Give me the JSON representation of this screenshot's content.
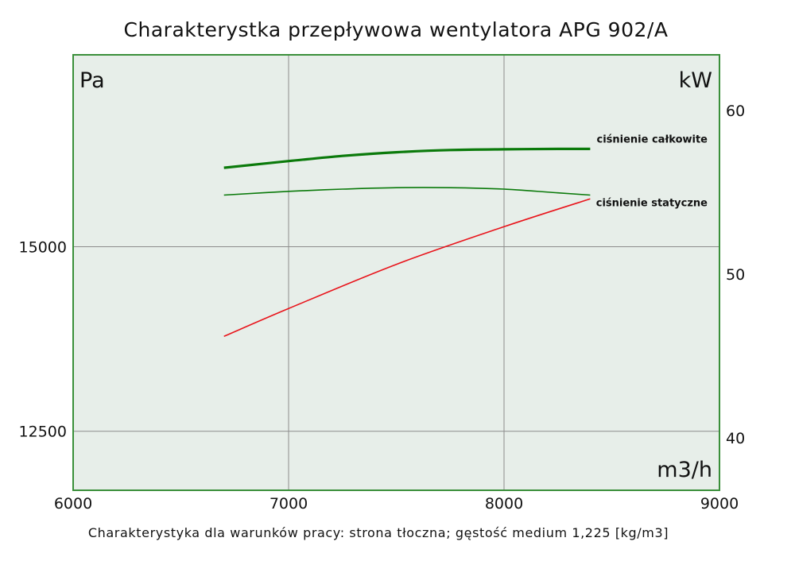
{
  "title": "Charakterystka przepływowa wentylatora APG 902/A",
  "footer": "Charakterystyka dla warunków pracy: strona tłoczna; gęstość medium 1,225 [kg/m3]",
  "colors": {
    "plot_background": "#e7eee9",
    "frame": "#3a8f3a",
    "grid": "#8c8c8c",
    "pressure_series": "#0b7a0b",
    "power_series": "#e8141b"
  },
  "chart_data": {
    "type": "line",
    "title": "Charakterystka przepływowa wentylatora APG 902/A",
    "xlabel": "m3/h",
    "ylabel_left": "Pa",
    "ylabel_right": "kW",
    "xlim": [
      6000,
      9000
    ],
    "ylim_left": [
      11700,
      17600
    ],
    "ylim_right": [
      36.8,
      63.4
    ],
    "x_ticks": [
      "6000",
      "7000",
      "8000",
      "9000"
    ],
    "y_left_ticks": [
      "12500",
      "15000"
    ],
    "y_right_ticks": [
      "40",
      "50",
      "60"
    ],
    "x_tick_values": [
      6000,
      7000,
      8000,
      9000
    ],
    "y_left_tick_values": [
      12500,
      15000
    ],
    "y_right_tick_values": [
      40,
      50,
      60
    ],
    "grid": true,
    "series": [
      {
        "name": "ciśnienie całkowite",
        "axis": "left",
        "color": "#0b7a0b",
        "bold": true,
        "x": [
          6700,
          7000,
          7250,
          7500,
          7750,
          8000,
          8250,
          8400
        ],
        "y": [
          16070,
          16160,
          16230,
          16280,
          16310,
          16320,
          16325,
          16325
        ]
      },
      {
        "name": "ciśnienie statyczne",
        "axis": "left",
        "color": "#0b7a0b",
        "bold": false,
        "x": [
          6700,
          7000,
          7250,
          7500,
          7750,
          8000,
          8250,
          8400
        ],
        "y": [
          15700,
          15750,
          15780,
          15800,
          15800,
          15780,
          15730,
          15700
        ]
      },
      {
        "axis": "right",
        "color": "#e8141b",
        "bold": false,
        "x": [
          6700,
          7000,
          7500,
          8000,
          8400
        ],
        "y": [
          46.2,
          47.9,
          50.6,
          52.9,
          54.6
        ]
      }
    ]
  }
}
